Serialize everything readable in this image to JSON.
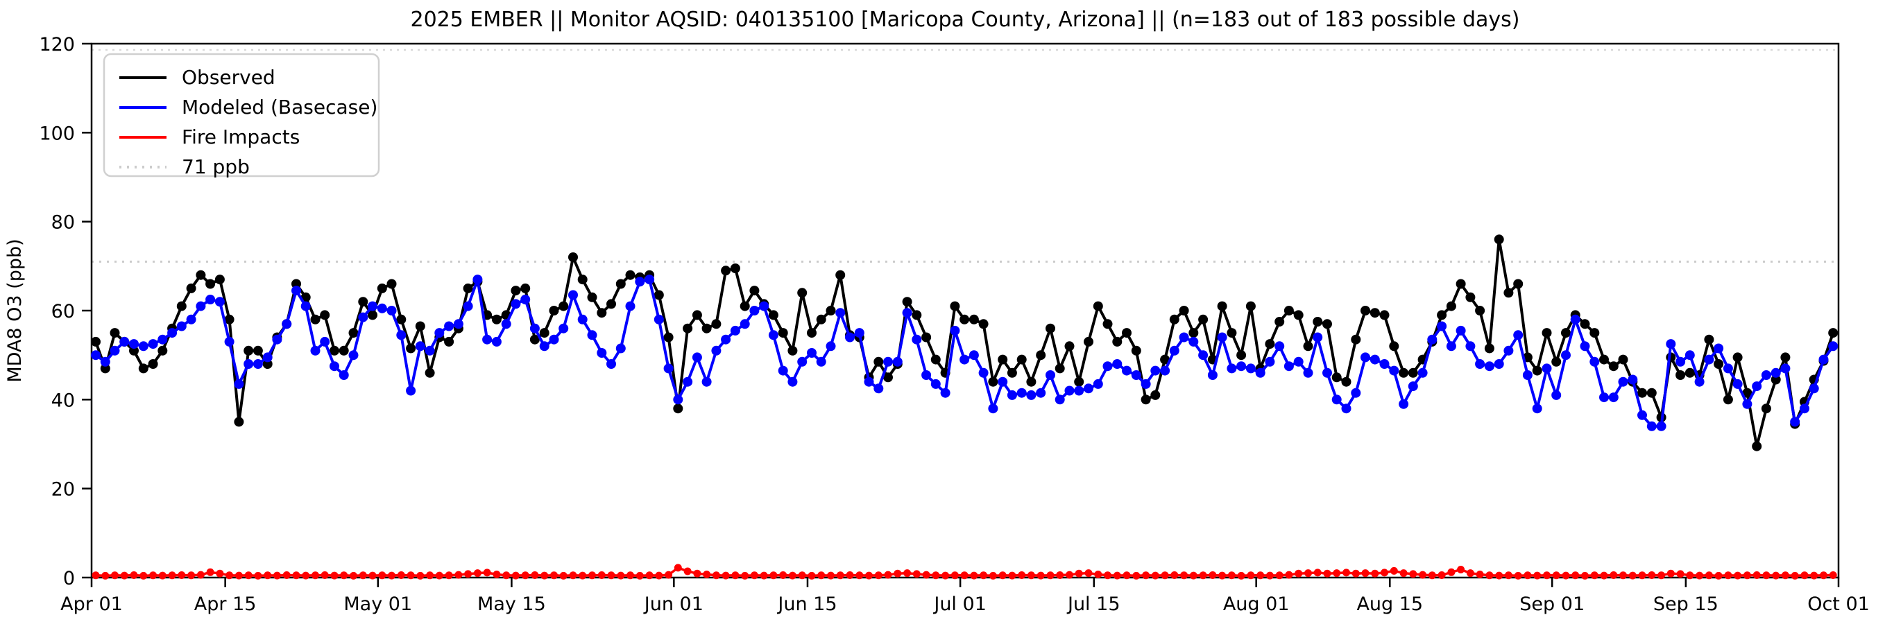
{
  "title": "2025 EMBER || Monitor AQSID: 040135100 [Maricopa County, Arizona] || (n=183 out of 183 possible days)",
  "chart_data": {
    "type": "line",
    "title": "2025 EMBER || Monitor AQSID: 040135100 [Maricopa County, Arizona] || (n=183 out of 183 possible days)",
    "xlabel": "",
    "ylabel": "MDA8 O3 (ppb)",
    "ylim": [
      0,
      120
    ],
    "yticks": [
      0,
      20,
      40,
      60,
      80,
      100,
      120
    ],
    "n_days": 183,
    "x_start": "Apr 01",
    "x_end": "Oct 01",
    "xtick_labels": [
      "Apr 01",
      "Apr 15",
      "May 01",
      "May 15",
      "Jun 01",
      "Jun 15",
      "Jul 01",
      "Jul 15",
      "Aug 01",
      "Aug 15",
      "Sep 01",
      "Sep 15",
      "Oct 01"
    ],
    "xtick_day_index": [
      0,
      14,
      30,
      44,
      61,
      75,
      91,
      105,
      122,
      136,
      153,
      167,
      183
    ],
    "grid": false,
    "legend_position": "upper-left",
    "legend": [
      "Observed",
      "Modeled (Basecase)",
      "Fire Impacts",
      "71 ppb"
    ],
    "threshold": {
      "value": 71,
      "label": "71 ppb",
      "color": "#cccccc"
    },
    "upper_dotted_value": 118.6,
    "upper_dotted_color": "#d9d9d9",
    "series": [
      {
        "name": "Observed",
        "color": "#000000",
        "values": [
          53,
          47,
          55,
          53,
          51,
          47,
          48,
          51,
          56,
          61,
          65,
          68,
          66,
          67,
          58,
          35,
          51,
          51,
          48,
          54,
          57,
          66,
          63,
          58,
          59,
          51,
          51,
          55,
          62,
          59,
          65,
          66,
          58,
          51.5,
          56.5,
          46,
          54,
          53,
          56,
          65,
          66.5,
          59,
          58,
          59,
          64.5,
          65,
          53.5,
          55,
          60,
          61,
          72,
          67,
          63,
          59.5,
          61.5,
          66,
          68,
          67.5,
          68,
          63.5,
          54,
          38,
          56,
          59,
          56,
          57,
          69,
          69.5,
          61,
          64.5,
          61.5,
          59,
          55,
          51,
          64,
          55,
          58,
          60,
          68,
          54.5,
          54,
          45,
          48.5,
          45,
          48,
          62,
          59,
          54,
          49,
          46,
          61,
          58,
          58,
          57,
          44,
          49,
          46,
          49,
          44,
          50,
          56,
          47,
          52,
          44,
          53,
          61,
          57,
          53,
          55,
          51,
          40,
          41,
          49,
          58,
          60,
          55,
          58,
          49,
          61,
          55,
          50,
          61,
          47,
          52.5,
          57.5,
          60,
          59,
          52,
          57.5,
          57,
          45,
          44,
          53.5,
          60,
          59.5,
          59,
          52,
          46,
          46,
          49,
          53,
          59,
          61,
          66,
          63,
          60,
          51.5,
          76,
          64,
          66,
          49.5,
          46.5,
          55,
          48.5,
          55,
          59,
          57,
          55,
          49,
          47.5,
          49,
          44,
          41.5,
          41.5,
          36,
          49.5,
          45.5,
          46,
          45.5,
          53.5,
          48,
          40,
          49.5,
          41.5,
          29.5,
          38,
          44.5,
          49.5,
          34.5,
          39.5,
          44.5,
          48.7,
          55
        ]
      },
      {
        "name": "Modeled (Basecase)",
        "color": "#0000ff",
        "values": [
          50,
          48.5,
          51,
          53,
          52.5,
          52,
          52.5,
          53.5,
          55,
          56.5,
          58,
          61,
          62.5,
          62,
          53,
          43.5,
          48,
          48,
          49.5,
          53.5,
          57,
          64.5,
          61,
          51,
          53,
          47.5,
          45.5,
          50,
          58.5,
          61,
          60.5,
          60,
          54.5,
          42,
          52,
          51,
          55,
          56.5,
          57,
          61,
          67,
          53.5,
          53,
          57,
          61.5,
          62.5,
          56,
          52,
          53.5,
          56,
          63.5,
          58,
          54.5,
          50.5,
          48,
          51.5,
          61,
          66.5,
          67,
          58,
          47,
          40,
          44,
          49.5,
          44,
          51,
          53.5,
          55.5,
          57,
          60,
          61,
          54.5,
          46.5,
          44,
          48.5,
          50.5,
          48.5,
          52,
          59.5,
          54,
          55,
          44,
          42.5,
          48.5,
          48.5,
          59.5,
          53.5,
          45.5,
          43.5,
          41.5,
          55.5,
          49,
          50,
          46,
          38,
          44,
          41,
          41.5,
          41,
          41.5,
          45.5,
          40,
          42,
          42,
          42.5,
          43.5,
          47.5,
          48,
          46.5,
          45.5,
          43.5,
          46.5,
          46.5,
          51,
          54,
          53,
          50,
          45.5,
          54,
          47,
          47.5,
          47,
          46,
          48.5,
          52,
          47.5,
          48.5,
          46,
          54,
          46,
          40,
          38,
          41.5,
          49.5,
          49,
          48,
          46.5,
          39,
          43,
          46,
          53.5,
          56.5,
          52,
          55.5,
          52,
          48,
          47.5,
          48,
          51,
          54.5,
          45.5,
          38,
          47,
          41,
          50,
          58,
          52,
          48.5,
          40.5,
          40.5,
          44,
          44.5,
          36.5,
          34,
          34,
          52.5,
          48.5,
          50,
          44,
          49,
          51.5,
          47,
          43.5,
          39,
          43,
          45.5,
          46,
          47,
          35,
          38,
          42.5,
          49,
          52
        ]
      },
      {
        "name": "Fire Impacts",
        "color": "#ff0000",
        "values": [
          0.5,
          0.4,
          0.5,
          0.45,
          0.55,
          0.4,
          0.5,
          0.45,
          0.5,
          0.55,
          0.5,
          0.6,
          1.2,
          0.9,
          0.5,
          0.45,
          0.5,
          0.4,
          0.5,
          0.45,
          0.55,
          0.5,
          0.45,
          0.5,
          0.55,
          0.45,
          0.5,
          0.4,
          0.5,
          0.45,
          0.5,
          0.45,
          0.55,
          0.5,
          0.4,
          0.5,
          0.45,
          0.5,
          0.6,
          0.8,
          1.0,
          1.1,
          0.7,
          0.5,
          0.45,
          0.5,
          0.55,
          0.45,
          0.5,
          0.4,
          0.5,
          0.45,
          0.5,
          0.55,
          0.5,
          0.45,
          0.5,
          0.4,
          0.5,
          0.45,
          0.6,
          2.2,
          1.4,
          0.9,
          0.7,
          0.5,
          0.45,
          0.5,
          0.4,
          0.5,
          0.45,
          0.5,
          0.55,
          0.45,
          0.5,
          0.4,
          0.5,
          0.45,
          0.5,
          0.55,
          0.5,
          0.45,
          0.5,
          0.6,
          0.9,
          1.0,
          0.8,
          0.6,
          0.5,
          0.45,
          0.5,
          0.5,
          0.45,
          0.5,
          0.4,
          0.5,
          0.45,
          0.55,
          0.5,
          0.45,
          0.5,
          0.55,
          0.6,
          0.9,
          1.0,
          0.7,
          0.5,
          0.45,
          0.5,
          0.4,
          0.5,
          0.45,
          0.5,
          0.55,
          0.5,
          0.45,
          0.5,
          0.55,
          0.45,
          0.5,
          0.4,
          0.5,
          0.5,
          0.45,
          0.5,
          0.6,
          0.9,
          1.0,
          1.1,
          0.9,
          1.0,
          1.1,
          0.9,
          1.0,
          0.9,
          1.1,
          1.5,
          1.0,
          0.8,
          0.6,
          0.5,
          0.55,
          1.2,
          1.8,
          1.0,
          0.7,
          0.5,
          0.45,
          0.5,
          0.4,
          0.5,
          0.45,
          0.5,
          0.5,
          0.45,
          0.5,
          0.4,
          0.5,
          0.45,
          0.55,
          0.5,
          0.45,
          0.5,
          0.55,
          0.5,
          0.9,
          0.8,
          0.5,
          0.45,
          0.5,
          0.4,
          0.5,
          0.45,
          0.5,
          0.55,
          0.5,
          0.45,
          0.5,
          0.4,
          0.5,
          0.45,
          0.5,
          0.55
        ]
      }
    ]
  }
}
